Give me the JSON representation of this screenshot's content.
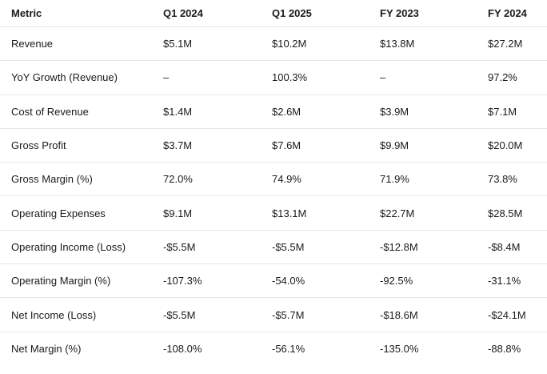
{
  "table": {
    "columns": [
      "Metric",
      "Q1 2024",
      "Q1 2025",
      "FY 2023",
      "FY 2024"
    ],
    "rows": [
      [
        "Revenue",
        "$5.1M",
        "$10.2M",
        "$13.8M",
        "$27.2M"
      ],
      [
        "YoY Growth (Revenue)",
        "–",
        "100.3%",
        "–",
        "97.2%"
      ],
      [
        "Cost of Revenue",
        "$1.4M",
        "$2.6M",
        "$3.9M",
        "$7.1M"
      ],
      [
        "Gross Profit",
        "$3.7M",
        "$7.6M",
        "$9.9M",
        "$20.0M"
      ],
      [
        "Gross Margin (%)",
        "72.0%",
        "74.9%",
        "71.9%",
        "73.8%"
      ],
      [
        "Operating Expenses",
        "$9.1M",
        "$13.1M",
        "$22.7M",
        "$28.5M"
      ],
      [
        "Operating Income (Loss)",
        "-$5.5M",
        "-$5.5M",
        "-$12.8M",
        "-$8.4M"
      ],
      [
        "Operating Margin (%)",
        "-107.3%",
        "-54.0%",
        "-92.5%",
        "-31.1%"
      ],
      [
        "Net Income (Loss)",
        "-$5.5M",
        "-$5.7M",
        "-$18.6M",
        "-$24.1M"
      ],
      [
        "Net Margin (%)",
        "-108.0%",
        "-56.1%",
        "-135.0%",
        "-88.8%"
      ]
    ]
  }
}
